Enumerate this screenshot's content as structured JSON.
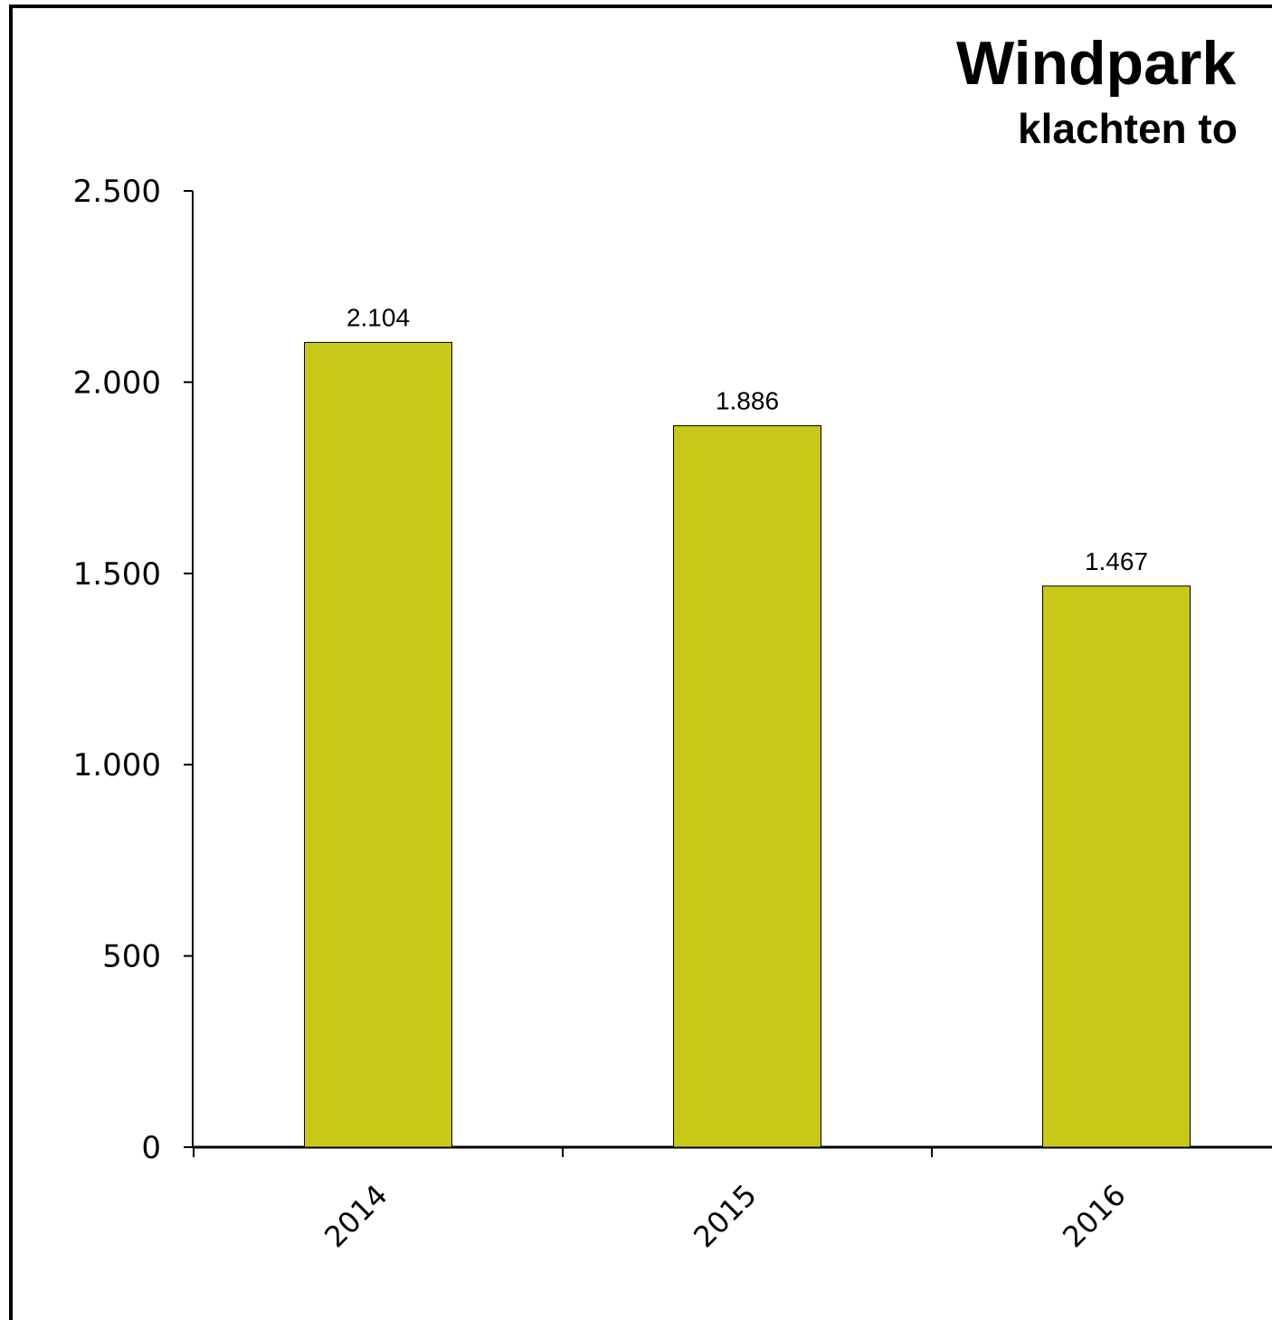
{
  "chart_data": {
    "type": "bar",
    "title": "Windpark",
    "subtitle": "klachten to",
    "categories": [
      "2014",
      "2015",
      "2016"
    ],
    "values": [
      2104,
      1886,
      1467
    ],
    "value_labels": [
      "2.104",
      "1.886",
      "1.467"
    ],
    "ylim": [
      0,
      2500
    ],
    "yticks": [
      0,
      500,
      1000,
      1500,
      2000,
      2500
    ],
    "ytick_labels": [
      "0",
      "500",
      "1.000",
      "1.500",
      "2.000",
      "2.500"
    ],
    "xlabel": "",
    "ylabel": "",
    "grid": false,
    "bar_color": "#c8c818",
    "frame_color": "#000000"
  }
}
